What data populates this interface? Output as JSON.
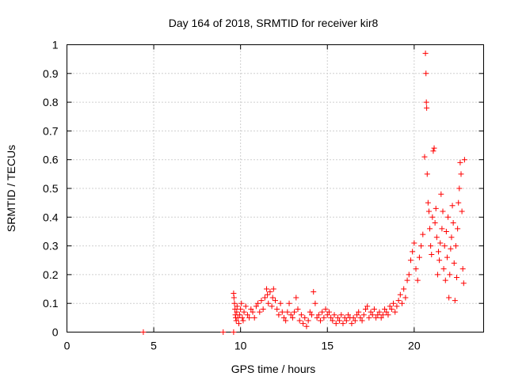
{
  "chart_data": {
    "type": "scatter",
    "title": "Day 164 of 2018, SRMTID for receiver kir8",
    "xlabel": "GPS time / hours",
    "ylabel": "SRMTID / TECUs",
    "xlim": [
      0,
      24
    ],
    "ylim": [
      0,
      1
    ],
    "x_ticks": [
      0,
      5,
      10,
      15,
      20
    ],
    "x_tick_labels": [
      "0",
      "5",
      "10",
      "15",
      "20"
    ],
    "y_ticks": [
      0,
      0.1,
      0.2,
      0.3,
      0.4,
      0.5,
      0.6,
      0.7,
      0.8,
      0.9,
      1
    ],
    "y_tick_labels": [
      "0",
      "0.1",
      "0.2",
      "0.3",
      "0.4",
      "0.5",
      "0.6",
      "0.7",
      "0.8",
      "0.9",
      "1"
    ],
    "grid": true,
    "marker": "+",
    "marker_color": "#ff0000",
    "series": [
      {
        "name": "SRMTID",
        "x": [
          4.4,
          9.0,
          9.6,
          9.6,
          9.62,
          9.65,
          9.68,
          9.7,
          9.72,
          9.75,
          9.78,
          9.8,
          9.85,
          9.9,
          9.95,
          10.0,
          10.05,
          10.1,
          10.15,
          10.2,
          10.3,
          10.4,
          10.5,
          10.6,
          10.7,
          10.8,
          10.9,
          11.0,
          11.1,
          11.2,
          11.3,
          11.4,
          11.5,
          11.55,
          11.6,
          11.7,
          11.8,
          11.85,
          11.9,
          12.0,
          12.1,
          12.2,
          12.3,
          12.4,
          12.5,
          12.6,
          12.7,
          12.8,
          12.9,
          13.0,
          13.1,
          13.2,
          13.3,
          13.4,
          13.5,
          13.6,
          13.7,
          13.8,
          13.9,
          14.0,
          14.1,
          14.2,
          14.3,
          14.4,
          14.5,
          14.6,
          14.7,
          14.8,
          14.9,
          15.0,
          15.1,
          15.2,
          15.3,
          15.4,
          15.5,
          15.6,
          15.7,
          15.8,
          15.9,
          16.0,
          16.1,
          16.2,
          16.3,
          16.4,
          16.5,
          16.6,
          16.7,
          16.8,
          16.9,
          17.0,
          17.1,
          17.2,
          17.3,
          17.4,
          17.5,
          17.6,
          17.7,
          17.8,
          17.9,
          18.0,
          18.1,
          18.2,
          18.3,
          18.4,
          18.5,
          18.6,
          18.7,
          18.8,
          18.9,
          19.0,
          19.1,
          19.2,
          19.3,
          19.4,
          19.5,
          19.6,
          19.7,
          19.8,
          19.9,
          20.0,
          20.1,
          20.2,
          20.3,
          20.4,
          20.5,
          20.6,
          20.65,
          20.68,
          20.7,
          20.72,
          20.75,
          20.8,
          20.85,
          20.9,
          20.95,
          21.0,
          21.05,
          21.1,
          21.15,
          21.2,
          21.25,
          21.3,
          21.35,
          21.4,
          21.45,
          21.5,
          21.55,
          21.6,
          21.65,
          21.7,
          21.75,
          21.8,
          21.85,
          21.9,
          21.95,
          22.0,
          22.05,
          22.1,
          22.15,
          22.2,
          22.25,
          22.3,
          22.35,
          22.4,
          22.45,
          22.5,
          22.55,
          22.6,
          22.65,
          22.7,
          22.75,
          22.8,
          22.85,
          22.9
        ],
        "y": [
          0.0,
          0.0,
          0.0,
          0.135,
          0.12,
          0.1,
          0.08,
          0.06,
          0.05,
          0.04,
          0.07,
          0.09,
          0.05,
          0.03,
          0.06,
          0.08,
          0.1,
          0.05,
          0.04,
          0.07,
          0.09,
          0.06,
          0.05,
          0.08,
          0.07,
          0.05,
          0.09,
          0.1,
          0.07,
          0.11,
          0.08,
          0.12,
          0.15,
          0.13,
          0.1,
          0.14,
          0.09,
          0.12,
          0.15,
          0.11,
          0.08,
          0.06,
          0.1,
          0.07,
          0.05,
          0.04,
          0.07,
          0.1,
          0.06,
          0.05,
          0.07,
          0.12,
          0.08,
          0.04,
          0.06,
          0.03,
          0.05,
          0.02,
          0.04,
          0.07,
          0.06,
          0.14,
          0.1,
          0.05,
          0.06,
          0.04,
          0.07,
          0.05,
          0.08,
          0.06,
          0.07,
          0.05,
          0.04,
          0.06,
          0.03,
          0.05,
          0.04,
          0.06,
          0.03,
          0.05,
          0.04,
          0.06,
          0.05,
          0.03,
          0.05,
          0.04,
          0.06,
          0.07,
          0.05,
          0.04,
          0.06,
          0.08,
          0.09,
          0.05,
          0.07,
          0.06,
          0.08,
          0.05,
          0.06,
          0.07,
          0.05,
          0.06,
          0.08,
          0.07,
          0.06,
          0.09,
          0.08,
          0.1,
          0.07,
          0.09,
          0.11,
          0.13,
          0.1,
          0.15,
          0.12,
          0.18,
          0.2,
          0.25,
          0.28,
          0.31,
          0.22,
          0.18,
          0.26,
          0.3,
          0.34,
          0.61,
          0.97,
          0.9,
          0.8,
          0.78,
          0.55,
          0.45,
          0.42,
          0.36,
          0.3,
          0.27,
          0.4,
          0.63,
          0.64,
          0.38,
          0.43,
          0.33,
          0.2,
          0.28,
          0.25,
          0.31,
          0.48,
          0.36,
          0.42,
          0.22,
          0.3,
          0.18,
          0.35,
          0.26,
          0.4,
          0.12,
          0.2,
          0.29,
          0.33,
          0.44,
          0.38,
          0.24,
          0.11,
          0.3,
          0.19,
          0.36,
          0.45,
          0.5,
          0.59,
          0.55,
          0.42,
          0.22,
          0.17,
          0.6
        ]
      }
    ]
  }
}
